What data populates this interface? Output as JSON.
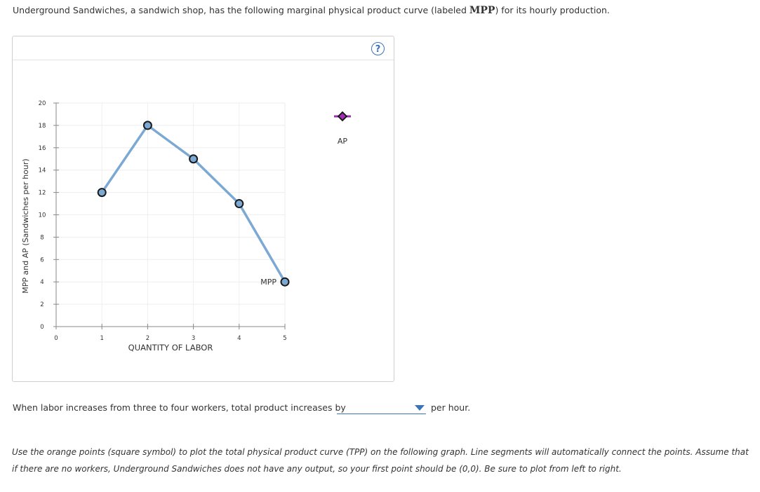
{
  "intro": {
    "before": "Underground Sandwiches, a sandwich shop, has the following marginal physical product curve (labeled ",
    "term": "MPP",
    "after": ") for its hourly production."
  },
  "help_label": "?",
  "chart_data": {
    "type": "line",
    "xlabel": "QUANTITY OF LABOR",
    "ylabel": "MPP and AP (Sandwiches per hour)",
    "xlim": [
      0,
      5
    ],
    "ylim": [
      0,
      20
    ],
    "x_ticks": [
      0,
      1,
      2,
      3,
      4,
      5
    ],
    "y_ticks": [
      0,
      2,
      4,
      6,
      8,
      10,
      12,
      14,
      16,
      18,
      20
    ],
    "grid": true,
    "series": [
      {
        "name": "MPP",
        "x": [
          1,
          2,
          3,
          4,
          5
        ],
        "y": [
          12,
          18,
          15,
          11,
          4
        ],
        "color": "#7ba9d4",
        "marker": "circle",
        "marker_color": "#7ba9d4"
      }
    ],
    "tool_palette": [
      {
        "name": "AP",
        "marker": "diamond",
        "color": "#9b2fb0"
      }
    ],
    "annotations": [
      {
        "text": "MPP",
        "series": "MPP",
        "point_index": 4
      }
    ]
  },
  "question": {
    "text": "When labor increases from three to four workers, total product increases by",
    "selected_value": "",
    "unit": "per hour."
  },
  "instructions": "Use the orange points (square symbol) to plot the total physical product curve (TPP) on the following graph. Line segments will automatically connect the points. Assume that if there are no workers, Underground Sandwiches does not have any output, so your first point should be (0,0). Be sure to plot from left to right.",
  "colors": {
    "accent": "#3b73b9",
    "mpp_line": "#7ba9d4",
    "ap_marker": "#9b2fb0"
  }
}
